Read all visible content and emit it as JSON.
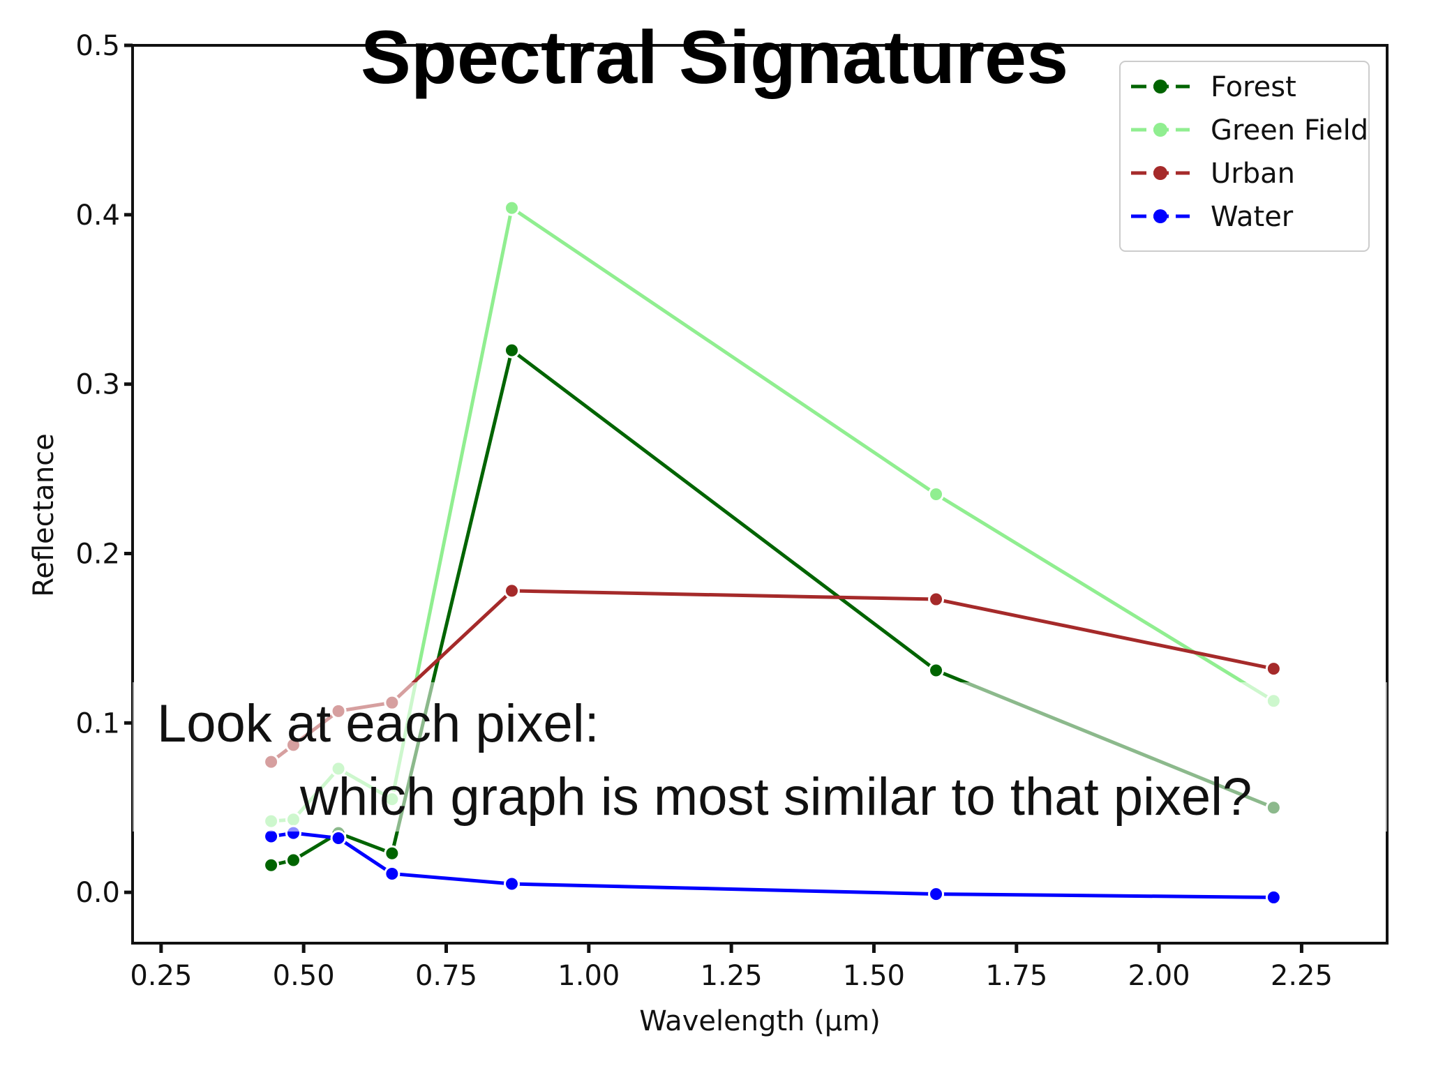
{
  "slide": {
    "title": "Spectral Signatures",
    "overlay_line1": "Look at each pixel:",
    "overlay_line2": "which graph is most similar to that pixel?"
  },
  "chart_data": {
    "type": "line",
    "xlabel": "Wavelength (µm)",
    "ylabel": "Reflectance",
    "xlim": [
      0.2,
      2.4
    ],
    "ylim": [
      -0.03,
      0.5
    ],
    "xticks": [
      "0.25",
      "0.50",
      "0.75",
      "1.00",
      "1.25",
      "1.50",
      "1.75",
      "2.00",
      "2.25"
    ],
    "xtick_values": [
      0.25,
      0.5,
      0.75,
      1.0,
      1.25,
      1.5,
      1.75,
      2.0,
      2.25
    ],
    "yticks": [
      "0.0",
      "0.1",
      "0.2",
      "0.3",
      "0.4",
      "0.5"
    ],
    "ytick_values": [
      0.0,
      0.1,
      0.2,
      0.3,
      0.4,
      0.5
    ],
    "legend_position": "top-right",
    "x": [
      0.443,
      0.482,
      0.561,
      0.655,
      0.865,
      1.609,
      2.201
    ],
    "series": [
      {
        "name": "Forest",
        "color": "#006400",
        "values": [
          0.016,
          0.019,
          0.035,
          0.023,
          0.32,
          0.131,
          0.05
        ]
      },
      {
        "name": "Green Field",
        "color": "#90ee90",
        "values": [
          0.042,
          0.043,
          0.073,
          0.055,
          0.404,
          0.235,
          0.113
        ]
      },
      {
        "name": "Urban",
        "color": "#a52a2a",
        "values": [
          0.077,
          0.087,
          0.107,
          0.112,
          0.178,
          0.173,
          0.132
        ]
      },
      {
        "name": "Water",
        "color": "#0000ff",
        "values": [
          0.033,
          0.035,
          0.032,
          0.011,
          0.005,
          -0.001,
          -0.003
        ]
      }
    ]
  }
}
